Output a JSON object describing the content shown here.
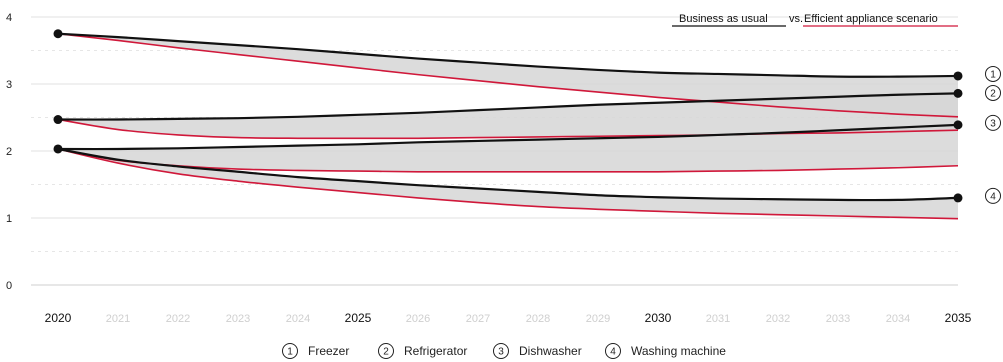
{
  "chart_data": {
    "type": "line",
    "ylim": [
      0,
      4
    ],
    "yticks": [
      "0",
      "1",
      "2",
      "3",
      "4"
    ],
    "x": [
      "2020",
      "2021",
      "2022",
      "2023",
      "2024",
      "2025",
      "2026",
      "2027",
      "2028",
      "2029",
      "2030",
      "2031",
      "2032",
      "2033",
      "2034",
      "2035"
    ],
    "major_ticks": [
      "2020",
      "2025",
      "2030",
      "2035"
    ],
    "scenario_note": {
      "bau": "Business as usual",
      "vs": "vs.",
      "eff": "Efficient appliance scenario"
    },
    "colors": {
      "bau": "#111111",
      "efficient": "#d0183a",
      "band": "#d6d6d6",
      "band_overlap": "#c2c2c2",
      "grid": "#e2e2e2",
      "grid_dashed": "#e6e6e6"
    },
    "series": [
      {
        "badge": "1",
        "name": "Freezer",
        "bau": [
          3.75,
          3.7,
          3.64,
          3.58,
          3.52,
          3.45,
          3.38,
          3.32,
          3.26,
          3.21,
          3.17,
          3.15,
          3.13,
          3.11,
          3.11,
          3.12
        ],
        "efficient": [
          3.75,
          3.65,
          3.54,
          3.44,
          3.34,
          3.24,
          3.14,
          3.05,
          2.96,
          2.88,
          2.8,
          2.73,
          2.66,
          2.6,
          2.55,
          2.51
        ]
      },
      {
        "badge": "2",
        "name": "Refrigerator",
        "bau": [
          2.47,
          2.47,
          2.48,
          2.49,
          2.51,
          2.54,
          2.57,
          2.61,
          2.65,
          2.69,
          2.72,
          2.75,
          2.78,
          2.81,
          2.84,
          2.86
        ],
        "efficient": [
          2.47,
          2.32,
          2.24,
          2.2,
          2.19,
          2.19,
          2.19,
          2.2,
          2.21,
          2.22,
          2.23,
          2.24,
          2.26,
          2.27,
          2.29,
          2.31
        ]
      },
      {
        "badge": "3",
        "name": "Dishwasher",
        "bau": [
          2.03,
          2.03,
          2.04,
          2.06,
          2.08,
          2.1,
          2.13,
          2.15,
          2.17,
          2.19,
          2.21,
          2.24,
          2.27,
          2.31,
          2.35,
          2.39
        ],
        "efficient": [
          2.03,
          1.86,
          1.78,
          1.73,
          1.71,
          1.7,
          1.69,
          1.69,
          1.69,
          1.69,
          1.69,
          1.7,
          1.71,
          1.73,
          1.75,
          1.78
        ]
      },
      {
        "badge": "4",
        "name": "Washing machine",
        "bau": [
          2.03,
          1.87,
          1.77,
          1.69,
          1.61,
          1.55,
          1.49,
          1.44,
          1.39,
          1.34,
          1.31,
          1.29,
          1.28,
          1.27,
          1.27,
          1.3
        ],
        "efficient": [
          2.03,
          1.82,
          1.66,
          1.55,
          1.46,
          1.38,
          1.3,
          1.23,
          1.17,
          1.13,
          1.1,
          1.07,
          1.05,
          1.03,
          1.01,
          0.99
        ]
      }
    ]
  }
}
